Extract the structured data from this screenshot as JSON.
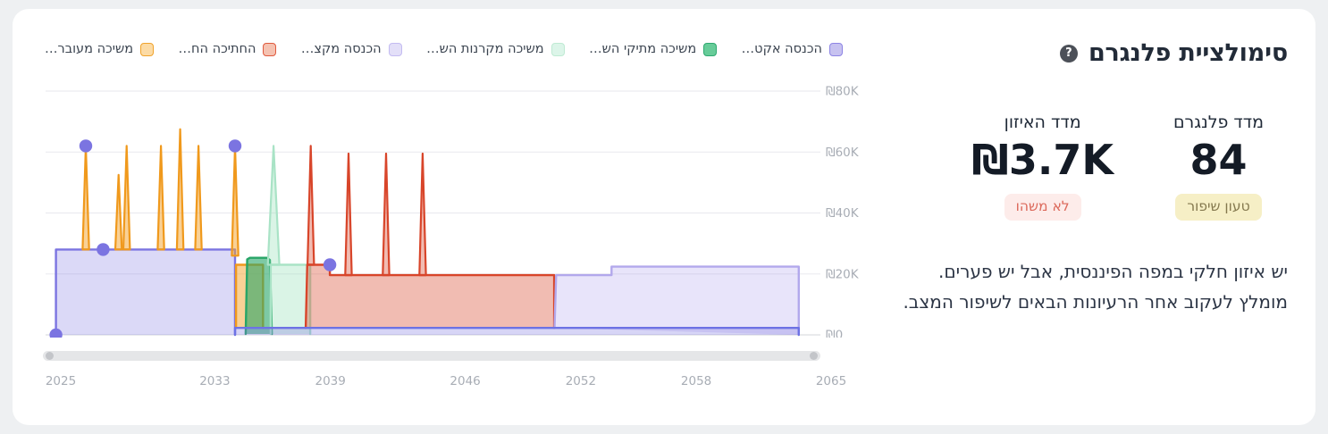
{
  "header": {
    "title": "סימולציית פלנגרם",
    "help_icon": "?"
  },
  "metrics": {
    "planogram": {
      "label": "מדד פלנגרם",
      "value": "84",
      "badge": "טעון שיפור"
    },
    "balance": {
      "label": "מדד האיזון",
      "value": "₪3.7K",
      "badge": "לא משהו"
    }
  },
  "description": {
    "line1": "יש איזון חלקי במפה הפיננסית, אבל יש פערים.",
    "line2": "מומלץ לעקוב אחר הרעיונות הבאים לשיפור המצב."
  },
  "colors": {
    "badge_yellow_bg": "#f6efc6",
    "badge_yellow_text": "#84784e",
    "badge_pink_bg": "#fdecea",
    "badge_pink_text": "#dc695b",
    "axis_text": "#a8adb5",
    "grid": "#ececf0",
    "grid_zero": "#dcdde1"
  },
  "chart_data": {
    "type": "area",
    "legend": [
      {
        "label": "הכנסה אקט…",
        "swatch_fill": "#c7c2f0",
        "swatch_border": "#8d84e4"
      },
      {
        "label": "משיכה מתיקי הש…",
        "swatch_fill": "#67cc99",
        "swatch_border": "#2fa970"
      },
      {
        "label": "משיכה מקרנות הש…",
        "swatch_fill": "#dcf5e9",
        "swatch_border": "#bfead3"
      },
      {
        "label": "הכנסה מקצ…",
        "swatch_fill": "#e3dff8",
        "swatch_border": "#c3bbf1"
      },
      {
        "label": "החתיכה הח…",
        "swatch_fill": "#f5c2b1",
        "swatch_border": "#e05a3e"
      },
      {
        "label": "משיכה מעובר…",
        "swatch_fill": "#fcdba5",
        "swatch_border": "#f0a32c"
      }
    ],
    "x_axis": {
      "ticks": [
        2025,
        2033,
        2039,
        2046,
        2052,
        2058,
        2065
      ],
      "min": 2024.3,
      "max": 2065.8
    },
    "y_axis": {
      "ticks": [
        {
          "label": "₪80K",
          "value": 80000
        },
        {
          "label": "₪60K",
          "value": 60000
        },
        {
          "label": "₪40K",
          "value": 40000
        },
        {
          "label": "₪20K",
          "value": 20000
        },
        {
          "label": "₪0",
          "value": 0
        }
      ],
      "max": 82000
    },
    "series": [
      {
        "name": "הכנסה אקט…",
        "key": "active-income",
        "stroke": "#7b74e1",
        "fill": "rgba(123,116,225,0.27)",
        "area": [
          [
            2024.75,
            0
          ],
          [
            2024.75,
            28000
          ],
          [
            2034.05,
            28000
          ],
          [
            2034.05,
            0
          ]
        ]
      },
      {
        "name": "משיכה מעובר…",
        "key": "transfer-withdrawal",
        "stroke": "#f0991c",
        "fill": "rgba(243,164,45,0.5)",
        "spike_halfwidth": 0.17,
        "spikes": [
          {
            "year": 2026.3,
            "peak": 62000,
            "base": 28000
          },
          {
            "year": 2028.0,
            "peak": 52500,
            "base": 28000
          },
          {
            "year": 2028.42,
            "peak": 62000,
            "base": 28000
          },
          {
            "year": 2030.2,
            "peak": 62000,
            "base": 28000
          },
          {
            "year": 2031.2,
            "peak": 67500,
            "base": 28000
          },
          {
            "year": 2032.15,
            "peak": 62000,
            "base": 28000
          },
          {
            "year": 2034.05,
            "peak": 62000,
            "base": 26000
          }
        ],
        "area": [
          [
            2034.1,
            2300
          ],
          [
            2034.1,
            23000
          ],
          [
            2035.5,
            23000
          ],
          [
            2035.5,
            2300
          ]
        ]
      },
      {
        "name": "משיכה מתיקי הש…",
        "key": "portfolio-withdrawal",
        "stroke": "#27a567",
        "fill": "rgba(39,165,103,0.6)",
        "area": [
          [
            2034.6,
            300
          ],
          [
            2034.68,
            24800
          ],
          [
            2034.82,
            25300
          ],
          [
            2035.7,
            25300
          ],
          [
            2035.86,
            24600
          ],
          [
            2035.96,
            300
          ]
        ]
      },
      {
        "name": "משיכה מקרנות הש…",
        "key": "pension-fund-withdrawal",
        "stroke": "#a9e3c6",
        "fill": "rgba(134,219,173,0.3)",
        "spike_halfwidth": 0.3,
        "spikes": [
          {
            "year": 2036.05,
            "peak": 62000,
            "base": 23000
          }
        ],
        "area": [
          [
            2035.9,
            300
          ],
          [
            2035.9,
            23000
          ],
          [
            2037.95,
            23000
          ],
          [
            2037.95,
            300
          ]
        ]
      },
      {
        "name": "החתיכה הח…",
        "key": "missing-piece",
        "stroke": "#d8452a",
        "fill": "rgba(216,69,42,0.36)",
        "spike_halfwidth": 0.17,
        "spikes": [
          {
            "year": 2037.98,
            "peak": 62000,
            "base": 23000
          },
          {
            "year": 2039.94,
            "peak": 59500,
            "base": 19600
          },
          {
            "year": 2041.89,
            "peak": 59500,
            "base": 19600
          },
          {
            "year": 2043.79,
            "peak": 59500,
            "base": 19600
          }
        ],
        "area": [
          [
            2037.72,
            2300
          ],
          [
            2037.8,
            23000
          ],
          [
            2038.97,
            23000
          ],
          [
            2038.97,
            19600
          ],
          [
            2050.62,
            19600
          ],
          [
            2050.62,
            2300
          ]
        ]
      },
      {
        "name": "הכנסה מקצ…",
        "key": "annuity-income",
        "stroke": "#b2a8ec",
        "fill": "rgba(151,132,230,0.22)",
        "area": [
          [
            2050.64,
            2300
          ],
          [
            2050.72,
            19600
          ],
          [
            2053.6,
            19600
          ],
          [
            2053.6,
            22400
          ],
          [
            2063.32,
            22400
          ],
          [
            2063.32,
            0
          ]
        ]
      },
      {
        "name": "הכנסה אקט…",
        "key": "active-income-tail",
        "stroke": "#6d72e4",
        "fill": "rgba(123,116,225,0.3)",
        "area": [
          [
            2034.05,
            0
          ],
          [
            2034.05,
            2300
          ],
          [
            2063.32,
            2300
          ],
          [
            2063.32,
            0
          ]
        ]
      }
    ],
    "events": [
      {
        "year": 2024.75,
        "value": 0
      },
      {
        "year": 2026.3,
        "value": 62000
      },
      {
        "year": 2027.2,
        "value": 28000
      },
      {
        "year": 2034.05,
        "value": 62000
      },
      {
        "year": 2038.97,
        "value": 23000
      }
    ],
    "event_color": "#7b74e1"
  }
}
